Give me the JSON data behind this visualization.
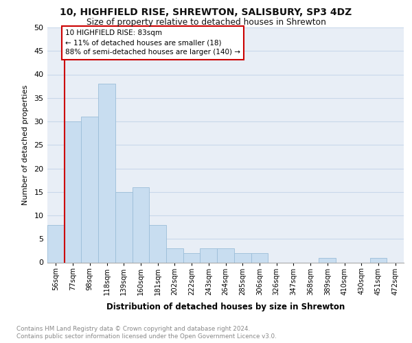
{
  "title": "10, HIGHFIELD RISE, SHREWTON, SALISBURY, SP3 4DZ",
  "subtitle": "Size of property relative to detached houses in Shrewton",
  "xlabel": "Distribution of detached houses by size in Shrewton",
  "ylabel": "Number of detached properties",
  "bar_labels": [
    "56sqm",
    "77sqm",
    "98sqm",
    "118sqm",
    "139sqm",
    "160sqm",
    "181sqm",
    "202sqm",
    "222sqm",
    "243sqm",
    "264sqm",
    "285sqm",
    "306sqm",
    "326sqm",
    "347sqm",
    "368sqm",
    "389sqm",
    "410sqm",
    "430sqm",
    "451sqm",
    "472sqm"
  ],
  "bar_values": [
    8,
    30,
    31,
    38,
    15,
    16,
    8,
    3,
    2,
    3,
    3,
    2,
    2,
    0,
    0,
    0,
    1,
    0,
    0,
    1,
    0
  ],
  "bar_color": "#c8ddf0",
  "bar_edge_color": "#9bbdd8",
  "grid_color": "#c8d8ea",
  "bg_color": "#e8eef6",
  "annotation_title": "10 HIGHFIELD RISE: 83sqm",
  "annotation_line1": "← 11% of detached houses are smaller (18)",
  "annotation_line2": "88% of semi-detached houses are larger (140) →",
  "annotation_box_color": "#cc0000",
  "ylim": [
    0,
    50
  ],
  "yticks": [
    0,
    5,
    10,
    15,
    20,
    25,
    30,
    35,
    40,
    45,
    50
  ],
  "property_line_x": 0.5,
  "footnote_line1": "Contains HM Land Registry data © Crown copyright and database right 2024.",
  "footnote_line2": "Contains public sector information licensed under the Open Government Licence v3.0."
}
